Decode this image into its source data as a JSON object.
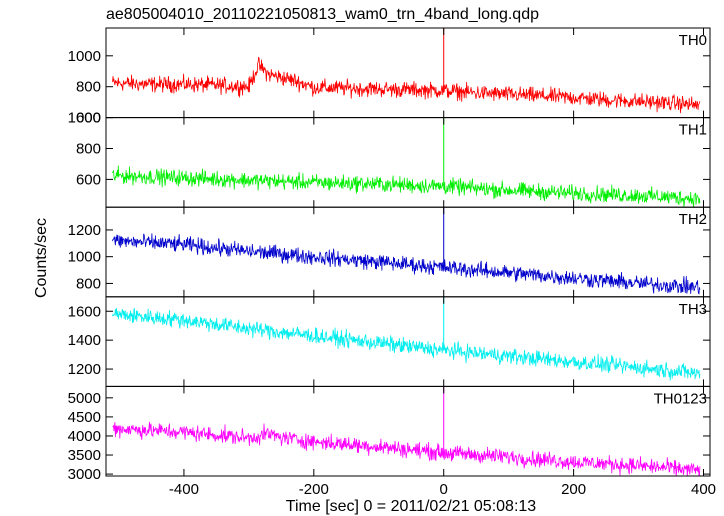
{
  "chart_data": {
    "type": "line",
    "title": "ae805004010_20110221050813_wam0_trn_4band_long.qdp",
    "xlabel": "Time [sec] 0 = 2011/02/21 05:08:13",
    "ylabel": "Counts/sec",
    "xlim": [
      -520,
      410
    ],
    "xticks": [
      "-400",
      "-200",
      "0",
      "200",
      "400"
    ],
    "grid": false,
    "panels": [
      {
        "name": "TH0",
        "color": "#ff0000",
        "ylim": [
          600,
          1180
        ],
        "yticks": [
          "600",
          "800",
          "1000"
        ],
        "points": [
          [
            -510,
            825
          ],
          [
            -450,
            815
          ],
          [
            -400,
            815
          ],
          [
            -350,
            810
          ],
          [
            -300,
            800
          ],
          [
            -285,
            940
          ],
          [
            -270,
            880
          ],
          [
            -250,
            860
          ],
          [
            -230,
            840
          ],
          [
            -200,
            795
          ],
          [
            -150,
            790
          ],
          [
            -100,
            785
          ],
          [
            -50,
            780
          ],
          [
            0,
            775
          ],
          [
            50,
            760
          ],
          [
            100,
            750
          ],
          [
            150,
            740
          ],
          [
            200,
            730
          ],
          [
            250,
            715
          ],
          [
            300,
            705
          ],
          [
            350,
            695
          ],
          [
            395,
            680
          ]
        ],
        "spike": {
          "x": 0,
          "peak": 1180
        }
      },
      {
        "name": "TH1",
        "color": "#00ee00",
        "ylim": [
          420,
          1000
        ],
        "yticks": [
          "600",
          "800",
          "1000"
        ],
        "points": [
          [
            -510,
            625
          ],
          [
            -400,
            610
          ],
          [
            -300,
            595
          ],
          [
            -200,
            580
          ],
          [
            -100,
            570
          ],
          [
            0,
            555
          ],
          [
            100,
            530
          ],
          [
            200,
            510
          ],
          [
            300,
            495
          ],
          [
            395,
            475
          ]
        ],
        "spike": {
          "x": 0,
          "peak": 1000
        }
      },
      {
        "name": "TH2",
        "color": "#0000cc",
        "ylim": [
          700,
          1370
        ],
        "yticks": [
          "800",
          "1000",
          "1200"
        ],
        "points": [
          [
            -510,
            1120
          ],
          [
            -400,
            1090
          ],
          [
            -300,
            1040
          ],
          [
            -200,
            1000
          ],
          [
            -100,
            960
          ],
          [
            0,
            920
          ],
          [
            100,
            880
          ],
          [
            200,
            840
          ],
          [
            300,
            800
          ],
          [
            395,
            770
          ]
        ],
        "spike": {
          "x": 0,
          "peak": 1370
        }
      },
      {
        "name": "TH3",
        "color": "#00eeee",
        "ylim": [
          1080,
          1700
        ],
        "yticks": [
          "1200",
          "1400",
          "1600"
        ],
        "points": [
          [
            -510,
            1580
          ],
          [
            -400,
            1540
          ],
          [
            -300,
            1480
          ],
          [
            -200,
            1430
          ],
          [
            -100,
            1380
          ],
          [
            0,
            1330
          ],
          [
            100,
            1290
          ],
          [
            200,
            1250
          ],
          [
            300,
            1210
          ],
          [
            395,
            1170
          ]
        ],
        "spike": {
          "x": 0,
          "peak": 1700
        }
      },
      {
        "name": "TH0123",
        "color": "#ff00ff",
        "ylim": [
          2950,
          5300
        ],
        "yticks": [
          "3000",
          "3500",
          "4000",
          "4500",
          "5000"
        ],
        "points": [
          [
            -510,
            4200
          ],
          [
            -400,
            4100
          ],
          [
            -300,
            3950
          ],
          [
            -270,
            4050
          ],
          [
            -250,
            3960
          ],
          [
            -200,
            3850
          ],
          [
            -100,
            3720
          ],
          [
            0,
            3560
          ],
          [
            100,
            3450
          ],
          [
            200,
            3320
          ],
          [
            300,
            3220
          ],
          [
            395,
            3100
          ]
        ],
        "spike": {
          "x": 0,
          "peak": 5300
        }
      }
    ]
  }
}
